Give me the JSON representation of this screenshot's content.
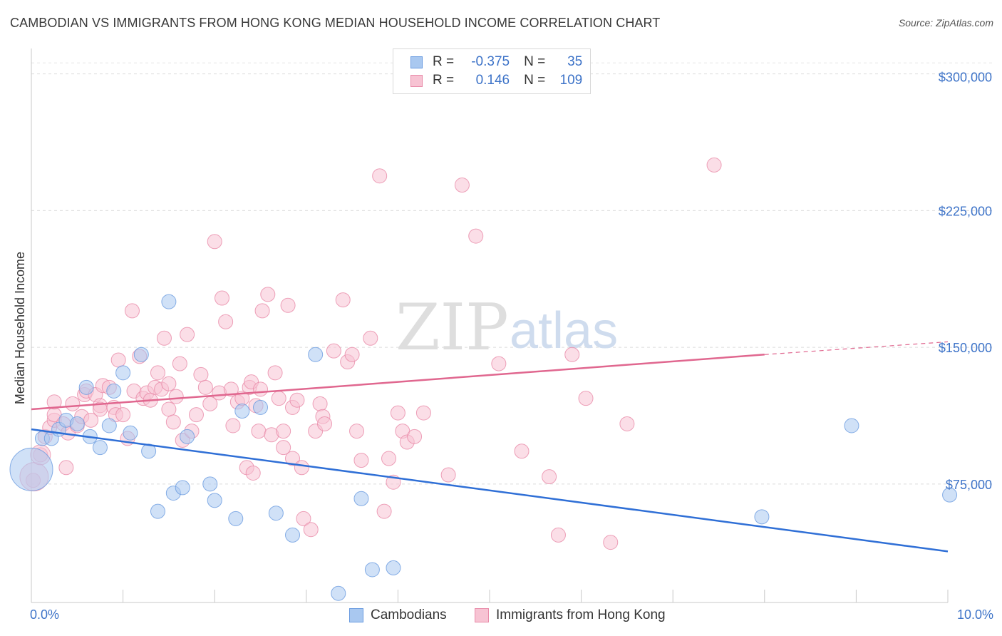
{
  "title": "CAMBODIAN VS IMMIGRANTS FROM HONG KONG MEDIAN HOUSEHOLD INCOME CORRELATION CHART",
  "source": "Source: ZipAtlas.com",
  "watermark": {
    "zip": "ZIP",
    "atlas": "atlas"
  },
  "legend": {
    "rows": [
      {
        "r_label": "R =",
        "r_value": "-0.375",
        "n_label": "N =",
        "n_value": "35",
        "color": "#a9c8f0",
        "border": "#6a9be0"
      },
      {
        "r_label": "R =",
        "r_value": "0.146",
        "n_label": "N =",
        "n_value": "109",
        "color": "#f7c3d3",
        "border": "#e88aa8"
      }
    ]
  },
  "bottom_legend": {
    "series1": "Cambodians",
    "series2": "Immigrants from Hong Kong"
  },
  "x_tick_labels": {
    "left": "0.0%",
    "right": "10.0%"
  },
  "chart_data": {
    "type": "scatter",
    "title": "CAMBODIAN VS IMMIGRANTS FROM HONG KONG MEDIAN HOUSEHOLD INCOME CORRELATION CHART",
    "xlabel": "",
    "ylabel": "Median Household Income",
    "xlim": [
      0,
      10
    ],
    "ylim": [
      10000,
      310000
    ],
    "y_ticks": [
      75000,
      150000,
      225000,
      300000
    ],
    "y_tick_labels": [
      "$75,000",
      "$150,000",
      "$225,000",
      "$300,000"
    ],
    "x_tick_labels": [
      "0.0%",
      "10.0%"
    ],
    "series": [
      {
        "name": "Cambodians",
        "color": "#6a9be0",
        "fill": "#a9c8f0",
        "trend": {
          "x0": 0,
          "y0": 105000,
          "x1": 10,
          "y1": 38000
        },
        "points": [
          [
            0.0,
            83000
          ],
          [
            0.12,
            100000
          ],
          [
            0.22,
            100000
          ],
          [
            0.3,
            105000
          ],
          [
            0.38,
            110000
          ],
          [
            0.5,
            108000
          ],
          [
            0.64,
            101000
          ],
          [
            0.6,
            128000
          ],
          [
            0.75,
            95000
          ],
          [
            0.85,
            107000
          ],
          [
            0.9,
            126000
          ],
          [
            1.0,
            136000
          ],
          [
            1.08,
            103000
          ],
          [
            1.2,
            146000
          ],
          [
            1.28,
            93000
          ],
          [
            1.38,
            60000
          ],
          [
            1.5,
            175000
          ],
          [
            1.55,
            70000
          ],
          [
            1.65,
            73000
          ],
          [
            1.7,
            101000
          ],
          [
            1.95,
            75000
          ],
          [
            2.0,
            66000
          ],
          [
            2.23,
            56000
          ],
          [
            2.3,
            115000
          ],
          [
            2.5,
            117000
          ],
          [
            2.67,
            59000
          ],
          [
            2.85,
            47000
          ],
          [
            3.1,
            146000
          ],
          [
            3.35,
            15000
          ],
          [
            3.6,
            67000
          ],
          [
            3.72,
            28000
          ],
          [
            3.95,
            29000
          ],
          [
            7.97,
            57000
          ],
          [
            8.95,
            107000
          ],
          [
            10.02,
            69000
          ]
        ],
        "sizes": [
          30,
          10,
          10,
          10,
          10,
          10,
          10,
          10,
          10,
          10,
          10,
          10,
          10,
          10,
          10,
          10,
          10,
          10,
          10,
          10,
          10,
          10,
          10,
          10,
          10,
          10,
          10,
          10,
          10,
          10,
          10,
          10,
          10,
          10,
          10
        ]
      },
      {
        "name": "Immigrants from Hong Kong",
        "color": "#e88aa8",
        "fill": "#f7c3d3",
        "trend": {
          "x0": 0,
          "y0": 116000,
          "x1": 8.0,
          "y1": 146000,
          "dash_x1": 10,
          "dash_y1": 153000
        },
        "points": [
          [
            0.02,
            77000
          ],
          [
            0.1,
            91000
          ],
          [
            0.15,
            101000
          ],
          [
            0.2,
            106000
          ],
          [
            0.25,
            110000
          ],
          [
            0.25,
            113000
          ],
          [
            0.25,
            120000
          ],
          [
            0.35,
            108000
          ],
          [
            0.38,
            84000
          ],
          [
            0.4,
            103000
          ],
          [
            0.45,
            119000
          ],
          [
            0.5,
            107000
          ],
          [
            0.55,
            112000
          ],
          [
            0.58,
            124000
          ],
          [
            0.6,
            126000
          ],
          [
            0.65,
            110000
          ],
          [
            0.7,
            124000
          ],
          [
            0.75,
            118000
          ],
          [
            0.75,
            116000
          ],
          [
            0.78,
            129000
          ],
          [
            0.85,
            128000
          ],
          [
            0.9,
            117000
          ],
          [
            0.92,
            113000
          ],
          [
            0.95,
            143000
          ],
          [
            1.0,
            113000
          ],
          [
            1.05,
            100000
          ],
          [
            1.1,
            170000
          ],
          [
            1.12,
            126000
          ],
          [
            1.18,
            145000
          ],
          [
            1.22,
            122000
          ],
          [
            1.26,
            125000
          ],
          [
            1.3,
            121000
          ],
          [
            1.35,
            128000
          ],
          [
            1.38,
            136000
          ],
          [
            1.42,
            127000
          ],
          [
            1.45,
            155000
          ],
          [
            1.5,
            130000
          ],
          [
            1.5,
            116000
          ],
          [
            1.55,
            109000
          ],
          [
            1.58,
            123000
          ],
          [
            1.62,
            141000
          ],
          [
            1.65,
            99000
          ],
          [
            1.7,
            157000
          ],
          [
            1.75,
            104000
          ],
          [
            1.8,
            113000
          ],
          [
            1.85,
            135000
          ],
          [
            1.9,
            128000
          ],
          [
            1.95,
            119000
          ],
          [
            2.0,
            208000
          ],
          [
            2.05,
            125000
          ],
          [
            2.08,
            177000
          ],
          [
            2.12,
            164000
          ],
          [
            2.18,
            127000
          ],
          [
            2.2,
            107000
          ],
          [
            2.25,
            120000
          ],
          [
            2.3,
            122000
          ],
          [
            2.35,
            84000
          ],
          [
            2.38,
            128000
          ],
          [
            2.4,
            131000
          ],
          [
            2.42,
            81000
          ],
          [
            2.45,
            118000
          ],
          [
            2.48,
            104000
          ],
          [
            2.5,
            127000
          ],
          [
            2.52,
            170000
          ],
          [
            2.58,
            179000
          ],
          [
            2.62,
            102000
          ],
          [
            2.66,
            136000
          ],
          [
            2.7,
            122000
          ],
          [
            2.75,
            104000
          ],
          [
            2.75,
            95000
          ],
          [
            2.8,
            173000
          ],
          [
            2.85,
            117000
          ],
          [
            2.85,
            89000
          ],
          [
            2.9,
            121000
          ],
          [
            2.95,
            84000
          ],
          [
            2.97,
            56000
          ],
          [
            3.05,
            50000
          ],
          [
            3.1,
            104000
          ],
          [
            3.15,
            119000
          ],
          [
            3.18,
            112000
          ],
          [
            3.2,
            108000
          ],
          [
            3.3,
            148000
          ],
          [
            3.4,
            176000
          ],
          [
            3.45,
            142000
          ],
          [
            3.5,
            146000
          ],
          [
            3.55,
            104000
          ],
          [
            3.6,
            88000
          ],
          [
            3.7,
            155000
          ],
          [
            3.8,
            244000
          ],
          [
            3.85,
            60000
          ],
          [
            3.9,
            89000
          ],
          [
            3.95,
            76000
          ],
          [
            4.0,
            114000
          ],
          [
            4.05,
            104000
          ],
          [
            4.1,
            98000
          ],
          [
            4.18,
            101000
          ],
          [
            4.28,
            114000
          ],
          [
            4.55,
            80000
          ],
          [
            4.7,
            239000
          ],
          [
            4.85,
            211000
          ],
          [
            5.1,
            141000
          ],
          [
            5.35,
            93000
          ],
          [
            5.65,
            79000
          ],
          [
            5.75,
            47000
          ],
          [
            5.9,
            146000
          ],
          [
            6.05,
            122000
          ],
          [
            6.32,
            43000
          ],
          [
            6.5,
            108000
          ],
          [
            7.45,
            250000
          ]
        ]
      }
    ]
  }
}
